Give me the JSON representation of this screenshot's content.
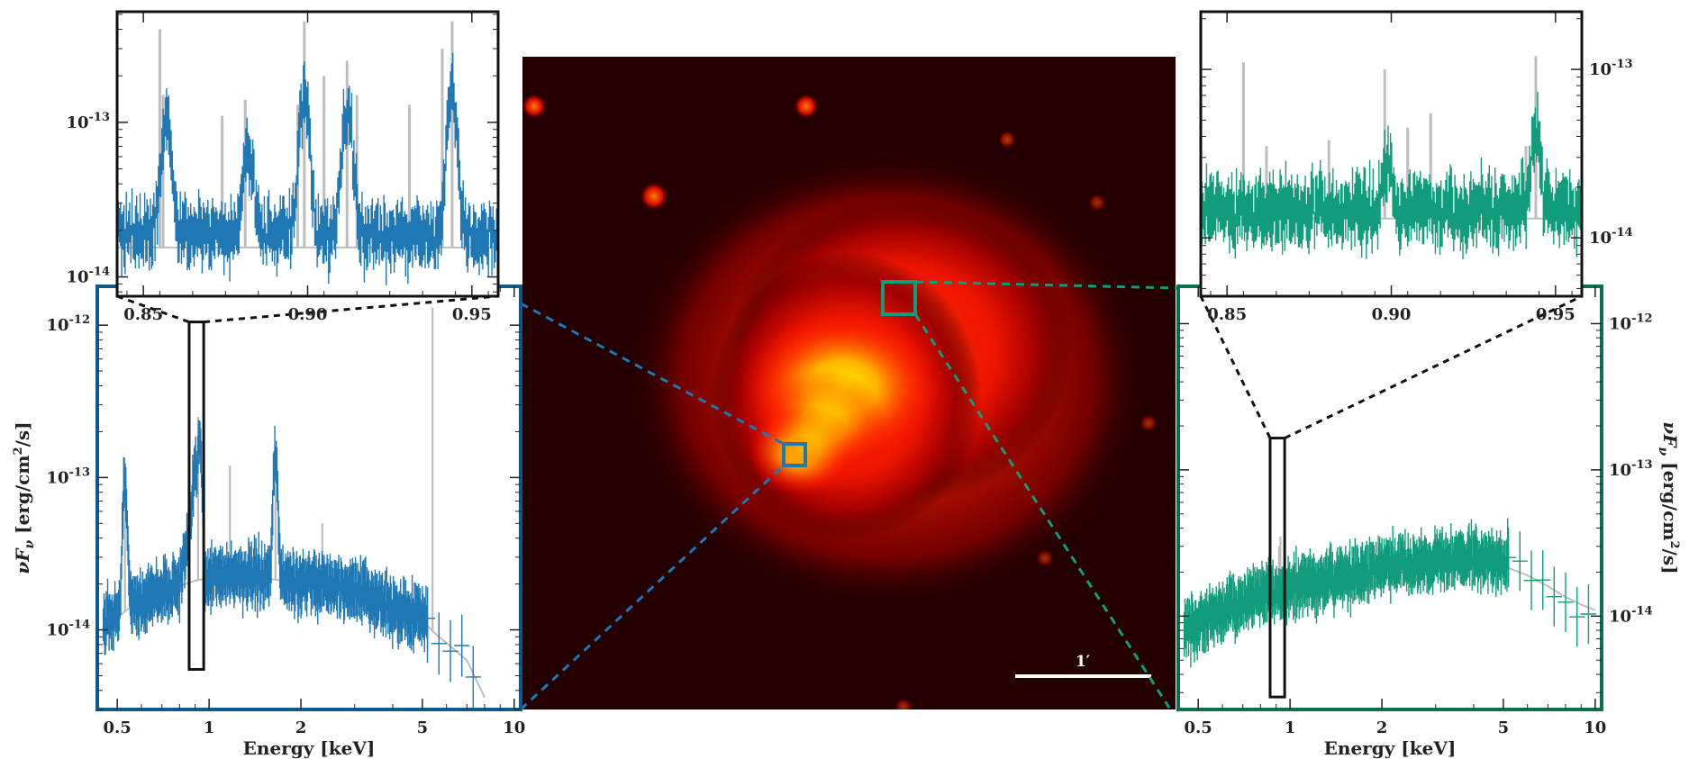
{
  "colors": {
    "blue_region": "#1f77b4",
    "green_region": "#119c7c",
    "model": "#bdbdbd",
    "frame": "#111111",
    "scale_bar": "#ffffff"
  },
  "image": {
    "scale_bar_label": "1′"
  },
  "chart_data": [
    {
      "id": "left-spectrum",
      "type": "line",
      "xlabel": "Energy [keV]",
      "ylabel": "νF_ν [erg/cm²/s]",
      "xscale": "log",
      "yscale": "log",
      "xlim": [
        0.43,
        10.5
      ],
      "ylim": [
        3e-15,
        1.8e-12
      ],
      "xticks": [
        0.5,
        1,
        2,
        5,
        10
      ],
      "xtick_labels": [
        "0.5",
        "1",
        "2",
        "5",
        "10"
      ],
      "yticks": [
        1e-14,
        1e-13,
        1e-12
      ],
      "ytick_labels": [
        {
          "base": "10",
          "exp": "-14"
        },
        {
          "base": "10",
          "exp": "-13"
        },
        {
          "base": "10",
          "exp": "-12"
        }
      ],
      "zoom_box": {
        "x": [
          0.86,
          0.96
        ],
        "y": [
          5.5e-15,
          1.05e-12
        ]
      },
      "series": [
        {
          "role": "data",
          "color": "blue_region",
          "x": [
            0.45,
            0.5,
            0.55,
            0.6,
            0.7,
            0.8,
            0.86,
            0.9,
            0.92,
            1.0,
            1.1,
            1.3,
            1.6,
            2.0,
            2.5,
            3.0,
            3.5,
            4.0,
            5.0,
            5.5,
            6.0,
            6.5,
            7.0,
            7.5,
            8.0
          ],
          "y": [
            1.1e-14,
            1.3e-14,
            1.45e-14,
            1.6e-14,
            1.8e-14,
            2e-14,
            4e-14,
            1.2e-13,
            2e-14,
            2.2e-14,
            2.3e-14,
            2.25e-14,
            2.2e-14,
            2.1e-14,
            1.95e-14,
            1.8e-14,
            1.6e-14,
            1.4e-14,
            1.2e-14,
            1e-14,
            8.5e-15,
            7.5e-15,
            6.5e-15,
            5.2e-15,
            4e-15
          ]
        },
        {
          "role": "model",
          "color": "model",
          "x": [
            0.45,
            0.5,
            0.55,
            0.6,
            0.7,
            0.8,
            0.9,
            1.0,
            1.3,
            1.6,
            2.0,
            2.5,
            3.0,
            4.0,
            5.0,
            5.5,
            6.0,
            7.0,
            8.0
          ],
          "y": [
            1e-14,
            1.2e-14,
            1.4e-14,
            1.55e-14,
            1.75e-14,
            1.95e-14,
            2.1e-14,
            2.2e-14,
            2.2e-14,
            2.15e-14,
            2.05e-14,
            1.9e-14,
            1.75e-14,
            1.4e-14,
            1.15e-14,
            9.5e-15,
            8.2e-15,
            6.3e-15,
            3.6e-15
          ]
        }
      ],
      "model_lines": [
        {
          "x": 0.53,
          "y": 1e-13
        },
        {
          "x": 0.92,
          "y": 2.5e-13
        },
        {
          "x": 1.17,
          "y": 1.2e-13
        },
        {
          "x": 1.65,
          "y": 1.4e-13
        },
        {
          "x": 2.35,
          "y": 5e-14
        },
        {
          "x": 5.4,
          "y": 1.3e-12
        }
      ],
      "data_peaks": [
        {
          "x": 0.53,
          "y": 8e-14
        },
        {
          "x": 0.93,
          "y": 1.8e-13
        },
        {
          "x": 1.65,
          "y": 1.1e-13
        }
      ]
    },
    {
      "id": "left-inset",
      "type": "line",
      "xscale": "linear",
      "yscale": "log",
      "xlim": [
        0.842,
        0.958
      ],
      "ylim": [
        7.5e-15,
        5.2e-13
      ],
      "xticks": [
        0.85,
        0.9,
        0.95
      ],
      "xtick_labels": [
        "0.85",
        "0.90",
        "0.95"
      ],
      "yticks": [
        1e-14,
        1e-13
      ],
      "ytick_labels": [
        {
          "base": "10",
          "exp": "-14"
        },
        {
          "base": "10",
          "exp": "-13"
        }
      ],
      "series": [
        {
          "role": "data",
          "color": "blue_region",
          "continuum": 1.9e-14,
          "peaks": [
            {
              "x": 0.857,
              "y": 1.1e-13
            },
            {
              "x": 0.882,
              "y": 7e-14
            },
            {
              "x": 0.899,
              "y": 1.5e-13
            },
            {
              "x": 0.912,
              "y": 1.2e-13
            },
            {
              "x": 0.944,
              "y": 1.5e-13
            }
          ]
        },
        {
          "role": "model",
          "color": "model",
          "continuum": 1.55e-14,
          "lines": [
            {
              "x": 0.855,
              "y": 4e-13
            },
            {
              "x": 0.856,
              "y": 1.5e-13
            },
            {
              "x": 0.874,
              "y": 1.1e-13
            },
            {
              "x": 0.881,
              "y": 1.4e-13
            },
            {
              "x": 0.897,
              "y": 1.3e-13
            },
            {
              "x": 0.899,
              "y": 4.5e-13
            },
            {
              "x": 0.905,
              "y": 2e-13
            },
            {
              "x": 0.912,
              "y": 2.5e-13
            },
            {
              "x": 0.915,
              "y": 1.5e-13
            },
            {
              "x": 0.931,
              "y": 1.3e-13
            },
            {
              "x": 0.941,
              "y": 3e-13
            },
            {
              "x": 0.944,
              "y": 4.5e-13
            }
          ]
        }
      ]
    },
    {
      "id": "right-spectrum",
      "type": "line",
      "xlabel": "Energy [keV]",
      "ylabel": "νF_ν [erg/cm²/s]",
      "xscale": "log",
      "yscale": "log",
      "xlim": [
        0.43,
        10.5
      ],
      "ylim": [
        2.3e-15,
        1.8e-12
      ],
      "xticks": [
        0.5,
        1,
        2,
        5,
        10
      ],
      "xtick_labels": [
        "0.5",
        "1",
        "2",
        "5",
        "10"
      ],
      "yticks": [
        1e-14,
        1e-13,
        1e-12
      ],
      "ytick_labels": [
        {
          "base": "10",
          "exp": "-14"
        },
        {
          "base": "10",
          "exp": "-13"
        },
        {
          "base": "10",
          "exp": "-12"
        }
      ],
      "zoom_box": {
        "x": [
          0.86,
          0.96
        ],
        "y": [
          2.8e-15,
          1.65e-13
        ]
      },
      "series": [
        {
          "role": "data",
          "color": "green_region",
          "x": [
            0.45,
            0.5,
            0.55,
            0.6,
            0.7,
            0.8,
            0.9,
            1.0,
            1.2,
            1.5,
            2.0,
            2.5,
            3.0,
            3.5,
            4.0,
            5.0,
            5.5,
            6.0,
            7.0,
            8.0,
            9.0,
            10.0
          ],
          "y": [
            8e-15,
            9e-15,
            1e-14,
            1.1e-14,
            1.25e-14,
            1.4e-14,
            1.5e-14,
            1.55e-14,
            1.7e-14,
            1.85e-14,
            2.1e-14,
            2.3e-14,
            2.4e-14,
            2.5e-14,
            2.5e-14,
            2.3e-14,
            2.6e-14,
            2e-14,
            1.6e-14,
            1.3e-14,
            1.1e-14,
            1e-14
          ]
        },
        {
          "role": "model",
          "color": "model",
          "x": [
            0.45,
            0.5,
            0.6,
            0.7,
            0.8,
            0.9,
            1.0,
            1.2,
            1.5,
            2.0,
            2.5,
            3.0,
            4.0,
            5.0,
            6.0,
            7.0,
            8.0,
            9.0,
            10.0
          ],
          "y": [
            7.5e-15,
            8.5e-15,
            1.05e-14,
            1.2e-14,
            1.35e-14,
            1.45e-14,
            1.5e-14,
            1.65e-14,
            1.8e-14,
            2.05e-14,
            2.2e-14,
            2.3e-14,
            2.35e-14,
            2.2e-14,
            1.9e-14,
            1.6e-14,
            1.35e-14,
            1.2e-14,
            1.1e-14
          ]
        }
      ],
      "model_lines": [
        {
          "x": 0.92,
          "y": 3e-14
        },
        {
          "x": 0.93,
          "y": 3.5e-14
        }
      ],
      "data_peaks": [
        {
          "x": 5.5,
          "y": 4e-14
        }
      ]
    },
    {
      "id": "right-inset",
      "type": "line",
      "xscale": "linear",
      "yscale": "log",
      "xlim": [
        0.842,
        0.958
      ],
      "ylim": [
        4.5e-15,
        2.2e-13
      ],
      "xticks": [
        0.85,
        0.9,
        0.95
      ],
      "xtick_labels": [
        "0.85",
        "0.90",
        "0.95"
      ],
      "yticks": [
        1e-14,
        1e-13
      ],
      "ytick_labels": [
        {
          "base": "10",
          "exp": "-14"
        },
        {
          "base": "10",
          "exp": "-13"
        }
      ],
      "series": [
        {
          "role": "data",
          "color": "green_region",
          "continuum": 1.45e-14,
          "peaks": [
            {
              "x": 0.899,
              "y": 3e-14
            },
            {
              "x": 0.944,
              "y": 4e-14
            }
          ]
        },
        {
          "role": "model",
          "color": "model",
          "continuum": 1.3e-14,
          "lines": [
            {
              "x": 0.855,
              "y": 1.1e-13
            },
            {
              "x": 0.862,
              "y": 3.5e-14
            },
            {
              "x": 0.881,
              "y": 3.8e-14
            },
            {
              "x": 0.898,
              "y": 1e-13
            },
            {
              "x": 0.905,
              "y": 4.5e-14
            },
            {
              "x": 0.912,
              "y": 5.5e-14
            },
            {
              "x": 0.941,
              "y": 3.5e-14
            },
            {
              "x": 0.944,
              "y": 1.2e-13
            }
          ]
        }
      ]
    }
  ]
}
